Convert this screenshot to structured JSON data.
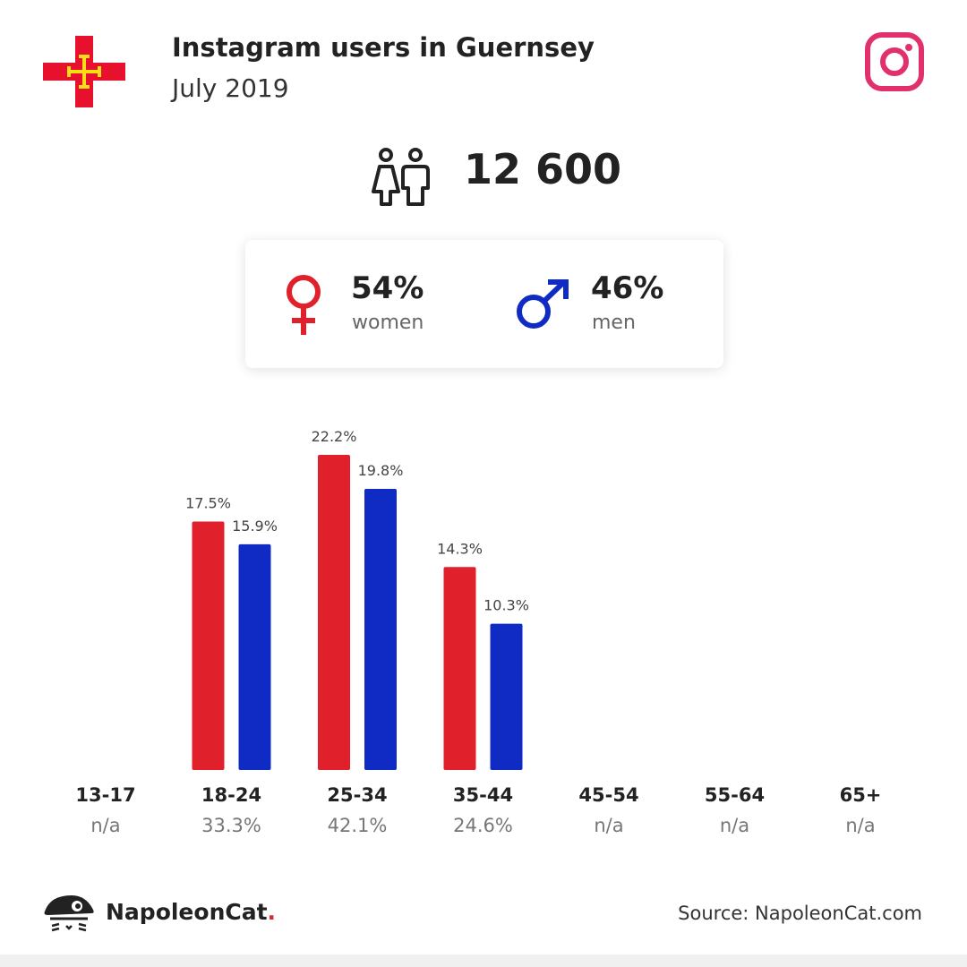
{
  "header": {
    "title": "Instagram users in Guernsey",
    "subtitle": "July 2019"
  },
  "total": {
    "value": "12 600",
    "icon": "users-icon"
  },
  "gender": {
    "women": {
      "pct": "54%",
      "label": "women",
      "icon": "female-icon",
      "color": "#e0202a"
    },
    "men": {
      "pct": "46%",
      "label": "men",
      "icon": "male-icon",
      "color": "#0f2bc4"
    }
  },
  "chart_data": {
    "type": "bar",
    "categories": [
      "13-17",
      "18-24",
      "25-34",
      "35-44",
      "45-54",
      "55-64",
      "65+"
    ],
    "category_totals": [
      "n/a",
      "33.3%",
      "42.1%",
      "24.6%",
      "n/a",
      "n/a",
      "n/a"
    ],
    "series": [
      {
        "color": "#e0202a",
        "values": [
          null,
          17.5,
          22.2,
          14.3,
          null,
          null,
          null
        ]
      },
      {
        "color": "#0f2bc4",
        "values": [
          null,
          15.9,
          19.8,
          10.3,
          null,
          null,
          null
        ]
      }
    ],
    "value_suffix": "%",
    "ylim": [
      0,
      22.2
    ]
  },
  "footer": {
    "brand_name": "NapoleonCat",
    "brand_dot": ".",
    "source": "Source: NapoleonCat.com"
  },
  "colors": {
    "flag_red": "#e8112d",
    "flag_cross": "#f9dd16",
    "instagram": "#e1306c"
  }
}
